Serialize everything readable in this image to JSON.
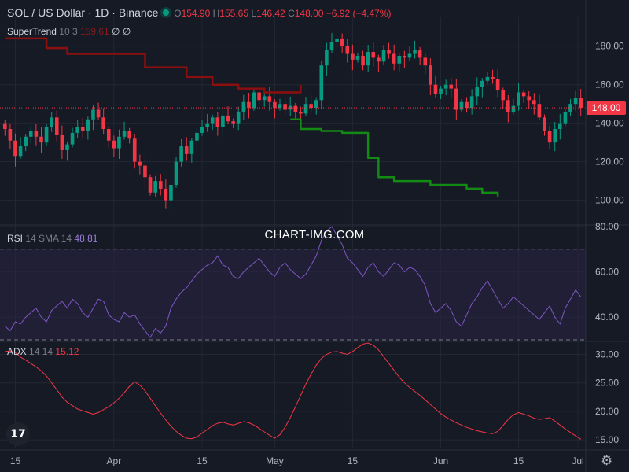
{
  "header": {
    "symbol": "SOL / US Dollar · 1D · Binance",
    "open_label": "O",
    "open": "154.90",
    "high_label": "H",
    "high": "155.65",
    "low_label": "L",
    "low": "146.42",
    "close_label": "C",
    "close": "148.00",
    "change": "−6.92 (−4.47%)"
  },
  "indicators": {
    "supertrend": {
      "name": "SuperTrend",
      "params": "10 3",
      "value": "159.61",
      "icons": "∅ ∅"
    },
    "rsi": {
      "name": "RSI",
      "params": "14 SMA 14",
      "value": "48.81"
    },
    "adx": {
      "name": "ADX",
      "params": "14 14",
      "value": "15.12"
    }
  },
  "last_price_label": "148.00",
  "watermark": "CHART-IMG.COM",
  "logo_text": "17",
  "colors": {
    "bg": "#161a25",
    "up": "#089981",
    "down": "#f23645",
    "supertrend_up": "#138a13",
    "supertrend_down": "#8b0f0f",
    "rsi_line": "#7e57c2",
    "rsi_band": "#2a2545",
    "adx_line": "#f23645",
    "grid": "#232733",
    "axis_text": "#b2b5be"
  },
  "chart_data": [
    {
      "type": "candlestick",
      "title": "SOL / US Dollar · 1D · Binance",
      "x_tick_labels": [
        "15",
        "Apr",
        "15",
        "May",
        "15",
        "Jun",
        "15",
        "Jul"
      ],
      "y_ticks": [
        100,
        120,
        140,
        160,
        180
      ],
      "ylim": [
        88,
        195
      ],
      "last_price": 148.0,
      "start_close": 140,
      "closes": [
        137,
        131,
        123,
        128,
        133,
        136,
        133,
        130,
        138,
        143,
        134,
        126,
        129,
        135,
        138,
        136,
        142,
        147,
        143,
        137,
        131,
        127,
        133,
        136,
        132,
        120,
        118,
        112,
        104,
        110,
        106,
        100,
        108,
        120,
        128,
        124,
        131,
        135,
        138,
        140,
        143,
        138,
        144,
        141,
        140,
        146,
        151,
        148,
        156,
        152,
        154,
        151,
        148,
        150,
        147,
        149,
        146,
        145,
        150,
        148,
        152,
        170,
        178,
        182,
        184,
        180,
        176,
        173,
        175,
        170,
        177,
        174,
        172,
        178,
        176,
        171,
        175,
        174,
        176,
        178,
        174,
        170,
        160,
        155,
        158,
        160,
        158,
        147,
        151,
        148,
        154,
        159,
        162,
        164,
        163,
        157,
        152,
        146,
        149,
        156,
        154,
        152,
        150,
        143,
        136,
        130,
        137,
        140,
        146,
        150,
        153,
        148
      ],
      "grid": true
    },
    {
      "type": "line",
      "title": "SuperTrend 10 3",
      "value": 159.61,
      "series": [
        {
          "name": "down",
          "values": [
            [
              0,
              184
            ],
            [
              8,
              179
            ],
            [
              12,
              176
            ],
            [
              20,
              176
            ],
            [
              27,
              169
            ],
            [
              35,
              164
            ],
            [
              40,
              160
            ],
            [
              45,
              158
            ],
            [
              50,
              156
            ],
            [
              57,
              160
            ]
          ]
        },
        {
          "name": "up",
          "values": [
            [
              55,
              142
            ],
            [
              57,
              137
            ],
            [
              61,
              136
            ],
            [
              65,
              135
            ],
            [
              70,
              122
            ],
            [
              72,
              112
            ],
            [
              75,
              110
            ],
            [
              82,
              108
            ],
            [
              89,
              106
            ],
            [
              92,
              104
            ],
            [
              95,
              102
            ]
          ]
        }
      ]
    },
    {
      "type": "line",
      "title": "RSI 14 SMA 14",
      "value": 48.81,
      "y_ticks": [
        40,
        60,
        80
      ],
      "ylim": [
        30,
        80
      ],
      "bands": [
        30,
        70
      ],
      "values": [
        36,
        34,
        38,
        37,
        40,
        42,
        44,
        40,
        38,
        43,
        45,
        47,
        44,
        48,
        46,
        42,
        40,
        44,
        48,
        47,
        41,
        39,
        38,
        42,
        40,
        41,
        37,
        34,
        31,
        35,
        33,
        36,
        44,
        48,
        51,
        53,
        56,
        59,
        61,
        63,
        64,
        67,
        63,
        62,
        58,
        57,
        60,
        62,
        64,
        66,
        63,
        60,
        58,
        62,
        64,
        61,
        59,
        57,
        59,
        63,
        67,
        74,
        78,
        80,
        76,
        72,
        66,
        64,
        61,
        58,
        62,
        64,
        60,
        58,
        61,
        64,
        63,
        60,
        62,
        61,
        58,
        54,
        46,
        42,
        44,
        46,
        43,
        38,
        36,
        41,
        46,
        49,
        53,
        56,
        52,
        48,
        44,
        46,
        49,
        47,
        45,
        43,
        41,
        39,
        42,
        45,
        40,
        37,
        44,
        48,
        52,
        49
      ],
      "grid": true
    },
    {
      "type": "line",
      "title": "ADX 14 14",
      "value": 15.12,
      "y_ticks": [
        15,
        20,
        25,
        30
      ],
      "ylim": [
        13.5,
        32
      ],
      "values": [
        30.5,
        30.6,
        30.3,
        29.5,
        29.0,
        28.4,
        27.8,
        27.1,
        26.2,
        25.0,
        23.8,
        22.5,
        21.6,
        21.0,
        20.4,
        20.1,
        19.8,
        19.5,
        19.8,
        20.3,
        20.8,
        21.5,
        22.3,
        23.3,
        24.4,
        25.2,
        24.6,
        23.6,
        22.3,
        21.0,
        19.7,
        18.5,
        17.4,
        16.5,
        15.8,
        15.3,
        15.2,
        15.5,
        16.2,
        16.8,
        17.5,
        17.9,
        18.1,
        17.8,
        17.6,
        17.9,
        18.2,
        18.0,
        17.6,
        17.0,
        16.4,
        15.8,
        15.3,
        15.9,
        17.2,
        18.9,
        20.8,
        22.8,
        24.8,
        26.5,
        28.1,
        29.3,
        30.0,
        30.4,
        30.5,
        30.2,
        30.0,
        30.5,
        31.2,
        31.8,
        32.0,
        31.6,
        30.8,
        29.6,
        28.4,
        27.2,
        26.0,
        25.0,
        24.2,
        23.5,
        22.8,
        22.0,
        21.2,
        20.4,
        19.6,
        19.0,
        18.5,
        18.0,
        17.6,
        17.2,
        16.9,
        16.6,
        16.4,
        16.2,
        16.1,
        16.5,
        17.5,
        18.6,
        19.4,
        19.8,
        19.5,
        19.2,
        18.8,
        18.6,
        18.7,
        18.9,
        18.3,
        17.6,
        16.9,
        16.3,
        15.7,
        15.12
      ],
      "grid": true
    }
  ]
}
